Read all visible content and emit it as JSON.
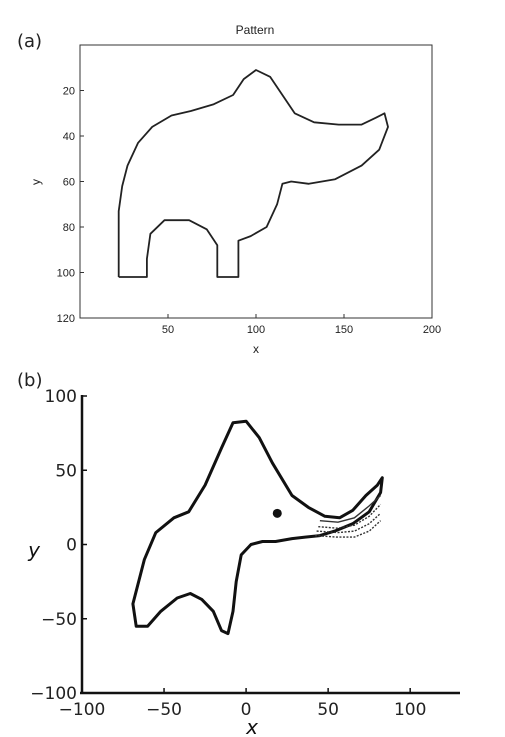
{
  "panels": {
    "a": {
      "label": "(a)",
      "chart_data": {
        "type": "line",
        "title": "Pattern",
        "xlabel": "x",
        "ylabel": "y",
        "xlim": [
          0,
          200
        ],
        "ylim": [
          120,
          0
        ],
        "y_inverted": true,
        "xticks": [
          50,
          100,
          150,
          200
        ],
        "yticks": [
          20,
          40,
          60,
          80,
          100,
          120
        ],
        "grid": false,
        "series": [
          {
            "points": [
              [
                22,
                102
              ],
              [
                22,
                73
              ],
              [
                24,
                62
              ],
              [
                27,
                53
              ],
              [
                33,
                43
              ],
              [
                41,
                36
              ],
              [
                52,
                31
              ],
              [
                63,
                29
              ],
              [
                76,
                26
              ],
              [
                87,
                22
              ],
              [
                93,
                15
              ],
              [
                100,
                11
              ],
              [
                108,
                14
              ],
              [
                115,
                22
              ],
              [
                122,
                30
              ],
              [
                133,
                34
              ],
              [
                147,
                35
              ],
              [
                160,
                35
              ],
              [
                168,
                32
              ],
              [
                173,
                30
              ],
              [
                175,
                36
              ],
              [
                170,
                46
              ],
              [
                160,
                53
              ],
              [
                145,
                59
              ],
              [
                130,
                61
              ],
              [
                120,
                60
              ],
              [
                115,
                61
              ],
              [
                112,
                70
              ],
              [
                106,
                80
              ],
              [
                97,
                84
              ],
              [
                90,
                86
              ],
              [
                90,
                102
              ],
              [
                78,
                102
              ],
              [
                78,
                88
              ],
              [
                72,
                81
              ],
              [
                62,
                77
              ],
              [
                48,
                77
              ],
              [
                40,
                83
              ],
              [
                38,
                94
              ],
              [
                38,
                102
              ],
              [
                22,
                102
              ]
            ]
          }
        ]
      }
    },
    "b": {
      "label": "(b)",
      "chart_data": {
        "type": "line",
        "title": "",
        "xlabel": "x",
        "ylabel": "y",
        "xlim": [
          -100,
          120
        ],
        "ylim": [
          -100,
          100
        ],
        "xticks": [
          -100,
          -50,
          0,
          50,
          100
        ],
        "yticks": [
          -100,
          -50,
          0,
          50,
          100
        ],
        "grid": false,
        "series": [
          {
            "points": [
              [
                -67,
                -55
              ],
              [
                -69,
                -40
              ],
              [
                -62,
                -10
              ],
              [
                -55,
                8
              ],
              [
                -44,
                18
              ],
              [
                -35,
                22
              ],
              [
                -25,
                40
              ],
              [
                -15,
                65
              ],
              [
                -8,
                82
              ],
              [
                0,
                83
              ],
              [
                8,
                72
              ],
              [
                16,
                55
              ],
              [
                28,
                33
              ],
              [
                38,
                25
              ],
              [
                48,
                19
              ],
              [
                57,
                18
              ],
              [
                65,
                23
              ],
              [
                73,
                33
              ],
              [
                80,
                40
              ],
              [
                83,
                45
              ],
              [
                82,
                35
              ],
              [
                75,
                22
              ],
              [
                65,
                14
              ],
              [
                54,
                9
              ],
              [
                45,
                6
              ],
              [
                36,
                5
              ],
              [
                28,
                4
              ],
              [
                18,
                2
              ],
              [
                10,
                2
              ],
              [
                3,
                0
              ],
              [
                -3,
                -7
              ],
              [
                -6,
                -25
              ],
              [
                -8,
                -45
              ],
              [
                -11,
                -60
              ],
              [
                -15,
                -58
              ],
              [
                -20,
                -45
              ],
              [
                -27,
                -37
              ],
              [
                -34,
                -33
              ],
              [
                -42,
                -36
              ],
              [
                -52,
                -45
              ],
              [
                -60,
                -55
              ],
              [
                -67,
                -55
              ]
            ]
          },
          {
            "tails": [
              [
                [
                  45,
                  16
                ],
                [
                  56,
                  15
                ],
                [
                  66,
                  18
                ],
                [
                  75,
                  26
                ],
                [
                  82,
                  33
                ]
              ],
              [
                [
                  44,
                  12
                ],
                [
                  56,
                  11
                ],
                [
                  66,
                  13
                ],
                [
                  75,
                  19
                ],
                [
                  82,
                  27
                ]
              ],
              [
                [
                  43,
                  9
                ],
                [
                  56,
                  8
                ],
                [
                  66,
                  9
                ],
                [
                  75,
                  14
                ],
                [
                  82,
                  21
                ]
              ],
              [
                [
                  42,
                  6
                ],
                [
                  55,
                  5
                ],
                [
                  66,
                  5
                ],
                [
                  75,
                  9
                ],
                [
                  82,
                  16
                ]
              ]
            ]
          }
        ],
        "marker": {
          "x": 19,
          "y": 21
        }
      }
    }
  }
}
